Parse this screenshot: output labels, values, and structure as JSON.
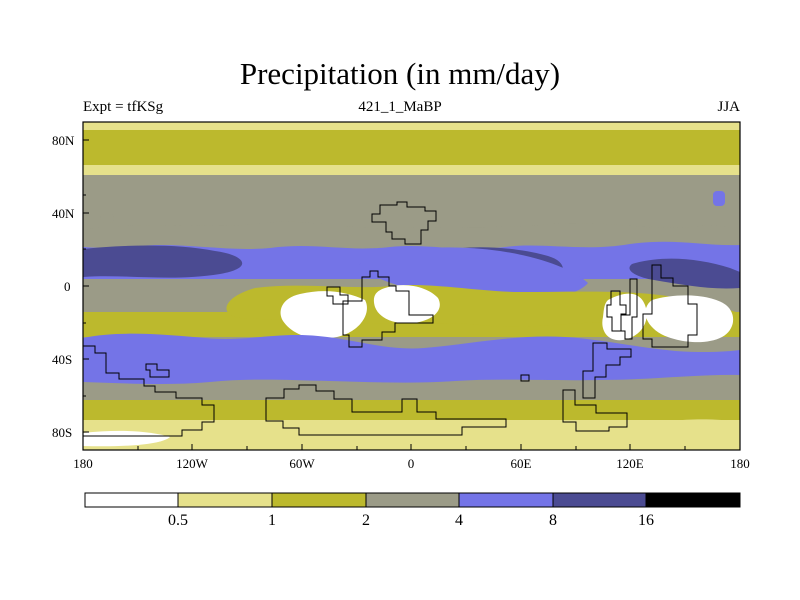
{
  "title": "Precipitation (in mm/day)",
  "experiment_label": "Expt = tfKSg",
  "run_label": "421_1_MaBP",
  "season_label": "JJA",
  "x_ticks": [
    "180",
    "120W",
    "60W",
    "0",
    "60E",
    "120E",
    "180"
  ],
  "y_ticks": [
    "80N",
    "40N",
    "0",
    "40S",
    "80S"
  ],
  "legend": {
    "labels": [
      "0.5",
      "1",
      "2",
      "4",
      "8",
      "16"
    ],
    "colors": [
      "#ffffff",
      "#e6e18b",
      "#bcb92d",
      "#9b9b87",
      "#7474e7",
      "#4b4b92",
      "#000000"
    ]
  }
}
